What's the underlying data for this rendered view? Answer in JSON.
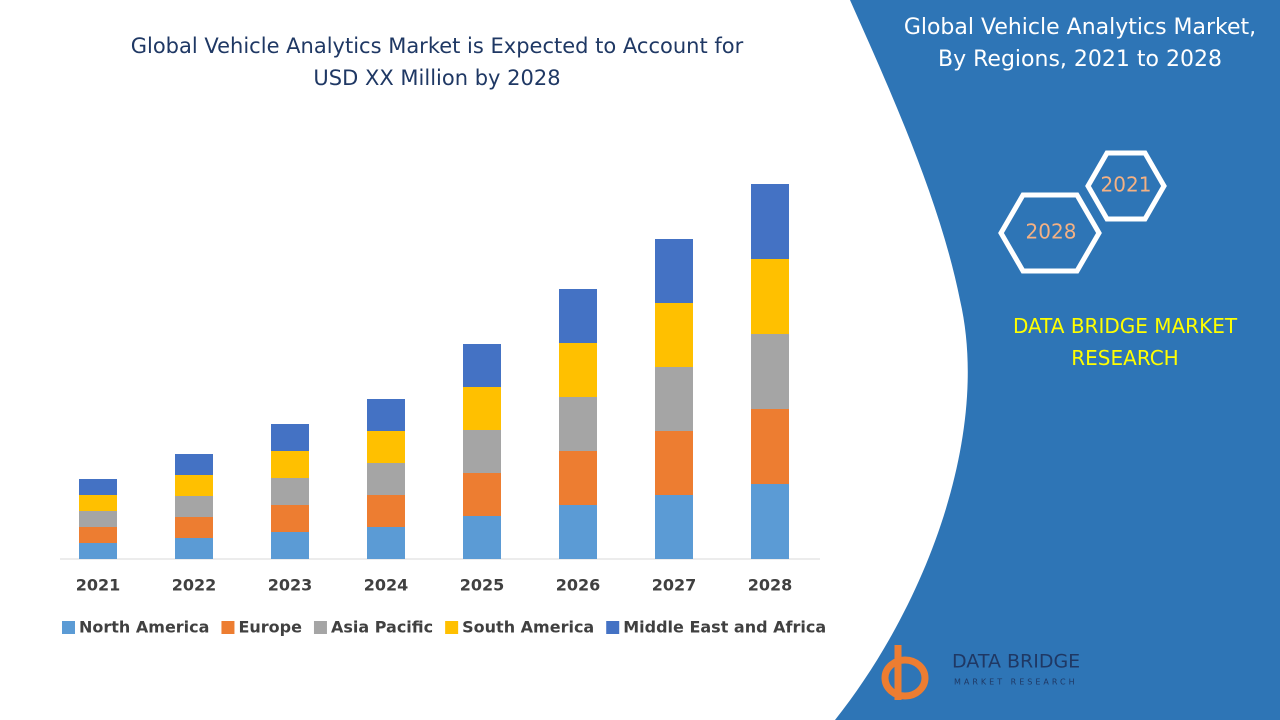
{
  "chart_data": {
    "type": "stacked_bar",
    "title": "Global Vehicle Analytics Market is Expected to Account for USD XX Million by 2028",
    "categories": [
      "2021",
      "2022",
      "2023",
      "2024",
      "2025",
      "2026",
      "2027",
      "2028"
    ],
    "series": [
      {
        "name": "North America",
        "color": "#5b9bd5",
        "values": [
          16,
          21,
          27,
          32,
          43,
          54,
          64,
          75
        ]
      },
      {
        "name": "Europe",
        "color": "#ed7d31",
        "values": [
          16,
          21,
          27,
          32,
          43,
          54,
          64,
          75
        ]
      },
      {
        "name": "Asia Pacific",
        "color": "#a5a5a5",
        "values": [
          16,
          21,
          27,
          32,
          43,
          54,
          64,
          75
        ]
      },
      {
        "name": "South America",
        "color": "#ffc000",
        "values": [
          16,
          21,
          27,
          32,
          43,
          54,
          64,
          75
        ]
      },
      {
        "name": "Middle East and Africa",
        "color": "#4472c4",
        "values": [
          16,
          21,
          27,
          32,
          43,
          54,
          64,
          75
        ]
      }
    ],
    "ylim": [
      0,
      400
    ],
    "legend": "bottom"
  },
  "side_panel": {
    "title": "Global Vehicle Analytics Market, By Regions, 2021 to 2028",
    "hexagons": [
      "2021",
      "2028"
    ],
    "brand": "DATA BRIDGE MARKET RESEARCH",
    "logo_text": "DATA BRIDGE",
    "logo_subtext": "MARKET RESEARCH"
  }
}
